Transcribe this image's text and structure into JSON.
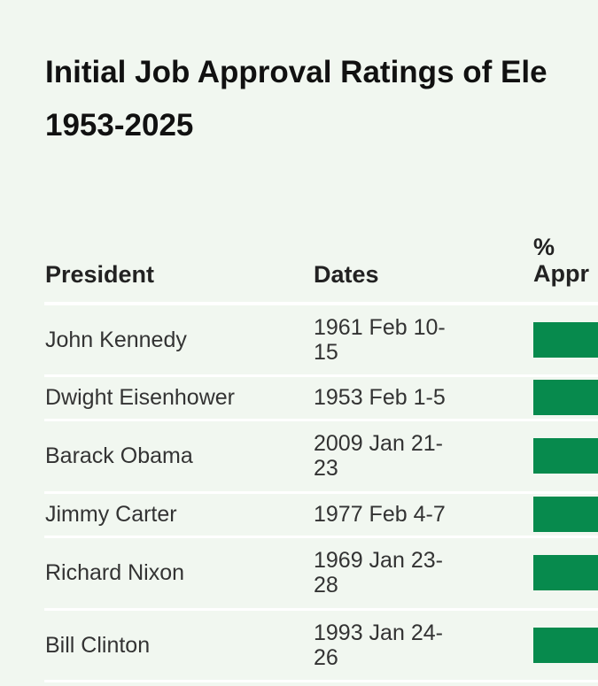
{
  "title": {
    "line1": "Initial Job Approval Ratings of Ele",
    "line2": "1953-2025"
  },
  "columns": {
    "president": "President",
    "dates": "Dates",
    "approve_line1": "%",
    "approve_line2": "Appr"
  },
  "colors": {
    "background": "#f1f7f0",
    "bar": "#078a4d",
    "divider": "#ffffff"
  },
  "rows": [
    {
      "president": "John Kennedy",
      "dates1": "1961 Feb 10-",
      "dates2": "15"
    },
    {
      "president": "Dwight Eisenhower",
      "dates1": "1953 Feb 1-5",
      "dates2": ""
    },
    {
      "president": "Barack Obama",
      "dates1": "2009 Jan 21-",
      "dates2": "23"
    },
    {
      "president": "Jimmy Carter",
      "dates1": "1977 Feb 4-7",
      "dates2": ""
    },
    {
      "president": "Richard Nixon",
      "dates1": "1969 Jan 23-",
      "dates2": "28"
    },
    {
      "president": "Bill Clinton",
      "dates1": "1993 Jan 24-",
      "dates2": "26"
    }
  ]
}
